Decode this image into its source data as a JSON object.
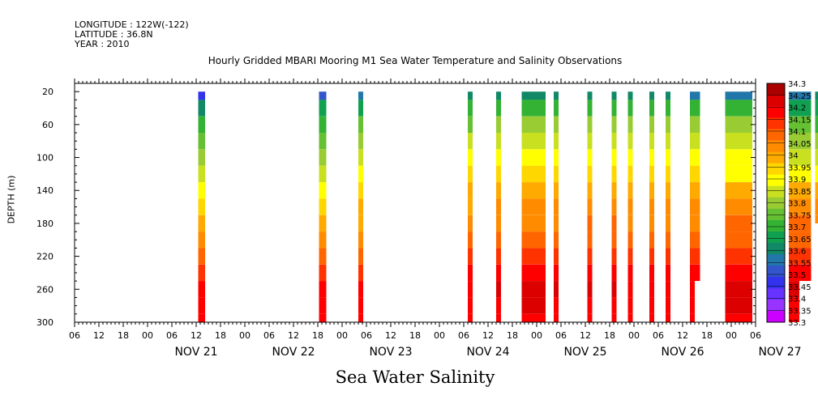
{
  "header": {
    "longitude": "LONGITUDE : 122W(-122)",
    "latitude": "LATITUDE : 36.8N",
    "year": "YEAR : 2010"
  },
  "chart_data": {
    "type": "heatmap",
    "title": "Hourly Gridded MBARI Mooring M1 Sea Water Temperature and Salinity Observations",
    "bottom_title": "Sea Water Salinity",
    "ylabel": "DEPTH (m)",
    "xlabel": "",
    "x_hour_labels": [
      "00",
      "06",
      "12",
      "18"
    ],
    "day_labels": [
      "NOV 21",
      "NOV 22",
      "NOV 23",
      "NOV 24",
      "NOV 25",
      "NOV 26",
      "NOV 27"
    ],
    "xlim_hours": [
      -18,
      24
    ],
    "x_hours_start_note": "",
    "ylim": [
      300,
      10
    ],
    "y_ticks": [
      20,
      60,
      100,
      140,
      180,
      220,
      260,
      300
    ],
    "colorbar_levels": [
      33.3,
      33.35,
      33.4,
      33.45,
      33.5,
      33.55,
      33.6,
      33.65,
      33.7,
      33.75,
      33.8,
      33.85,
      33.9,
      33.95,
      34,
      34.05,
      34.1,
      34.15,
      34.2,
      34.25,
      34.3
    ],
    "colorbar_labels": [
      "34.3",
      "34.25",
      "34.2",
      "34.15",
      "34.1",
      "34.05",
      "34",
      "33.95",
      "33.9",
      "33.85",
      "33.8",
      "33.75",
      "33.7",
      "33.65",
      "33.6",
      "33.55",
      "33.5",
      "33.45",
      "33.4",
      "33.35",
      "33.3"
    ],
    "colors": [
      "#cc00ff",
      "#9933ff",
      "#6633ff",
      "#3333ee",
      "#3355cc",
      "#2277aa",
      "#118866",
      "#11a050",
      "#33b233",
      "#66c033",
      "#99cc33",
      "#c8e020",
      "#ffff00",
      "#ffd700",
      "#ffaa00",
      "#ff8c00",
      "#ff6600",
      "#ff3300",
      "#ff0000",
      "#dd0000",
      "#aa0000"
    ],
    "profiles": [
      {
        "name": "A",
        "x0": 12.5,
        "x1": 14.2,
        "depths": [
          20,
          40,
          60,
          80,
          100,
          120,
          140,
          160,
          180,
          200,
          220,
          240,
          260,
          280,
          300
        ],
        "values": [
          33.45,
          33.6,
          33.7,
          33.75,
          33.8,
          33.85,
          33.9,
          33.95,
          34.0,
          34.05,
          34.1,
          34.15,
          34.2,
          34.2,
          34.2
        ]
      },
      {
        "name": "B",
        "x0": 42.3,
        "x1": 44.1,
        "depths": [
          20,
          40,
          60,
          80,
          100,
          120,
          140,
          160,
          180,
          200,
          220,
          240,
          260,
          280,
          300
        ],
        "values": [
          33.5,
          33.65,
          33.72,
          33.78,
          33.83,
          33.88,
          33.93,
          33.98,
          34.02,
          34.06,
          34.12,
          34.17,
          34.2,
          34.22,
          34.22
        ]
      },
      {
        "name": "C",
        "x0": 52.0,
        "x1": 53.2,
        "depths": [
          20,
          40,
          60,
          80,
          100,
          120,
          140,
          160,
          180,
          200,
          220,
          240,
          260,
          280,
          300
        ],
        "values": [
          33.55,
          33.68,
          33.75,
          33.8,
          33.85,
          33.9,
          33.95,
          34.0,
          34.03,
          34.07,
          34.12,
          34.17,
          34.2,
          34.21,
          34.2
        ]
      },
      {
        "name": "D",
        "x0": 79.0,
        "x1": 80.2,
        "depths": [
          20,
          40,
          60,
          80,
          100,
          120,
          140,
          160,
          180,
          200,
          220,
          240,
          260,
          280,
          300
        ],
        "values": [
          33.6,
          33.7,
          33.78,
          33.85,
          33.9,
          33.95,
          34.0,
          34.02,
          34.05,
          34.1,
          34.15,
          34.2,
          34.22,
          34.22,
          34.2
        ]
      },
      {
        "name": "E",
        "x0": 86.0,
        "x1": 87.2,
        "depths": [
          20,
          40,
          60,
          80,
          100,
          120,
          140,
          160,
          180,
          200,
          220,
          240,
          260,
          280,
          300
        ],
        "values": [
          33.6,
          33.72,
          33.8,
          33.87,
          33.92,
          33.97,
          34.02,
          34.05,
          34.08,
          34.12,
          34.17,
          34.22,
          34.25,
          34.24,
          34.2
        ]
      },
      {
        "name": "F",
        "x0": 92.3,
        "x1": 98.2,
        "depths": [
          20,
          40,
          60,
          80,
          100,
          120,
          140,
          160,
          180,
          200,
          220,
          240,
          260,
          280,
          300
        ],
        "values": [
          33.6,
          33.72,
          33.82,
          33.88,
          33.9,
          33.95,
          34.0,
          34.05,
          34.08,
          34.1,
          34.18,
          34.22,
          34.27,
          34.25,
          34.22
        ]
      },
      {
        "name": "G",
        "x0": 100.2,
        "x1": 101.4,
        "depths": [
          20,
          40,
          60,
          80,
          100,
          120,
          140,
          160,
          180,
          200,
          220,
          240,
          260,
          280,
          300
        ],
        "values": [
          33.6,
          33.72,
          33.82,
          33.88,
          33.93,
          33.98,
          34.02,
          34.05,
          34.08,
          34.12,
          34.17,
          34.22,
          34.25,
          34.23,
          34.2
        ]
      },
      {
        "name": "H",
        "x0": 108.5,
        "x1": 109.7,
        "depths": [
          20,
          40,
          60,
          80,
          100,
          120,
          140,
          160,
          180,
          200,
          220,
          240,
          260,
          280,
          300
        ],
        "values": [
          33.6,
          33.72,
          33.8,
          33.87,
          33.92,
          33.97,
          34.0,
          34.05,
          34.1,
          34.12,
          34.17,
          34.22,
          34.25,
          34.22,
          34.2
        ]
      },
      {
        "name": "I",
        "x0": 114.5,
        "x1": 115.7,
        "depths": [
          20,
          40,
          60,
          80,
          100,
          120,
          140,
          160,
          180,
          200,
          220,
          240,
          260,
          280,
          300
        ],
        "values": [
          33.6,
          33.72,
          33.8,
          33.87,
          33.92,
          33.97,
          34.0,
          34.05,
          34.1,
          34.12,
          34.17,
          34.22,
          34.25,
          34.22,
          34.2
        ]
      },
      {
        "name": "J",
        "x0": 118.5,
        "x1": 119.7,
        "depths": [
          20,
          40,
          60,
          80,
          100,
          120,
          140,
          160,
          180,
          200,
          220,
          240,
          260,
          280,
          300
        ],
        "values": [
          33.6,
          33.72,
          33.8,
          33.87,
          33.92,
          33.97,
          34.0,
          34.05,
          34.08,
          34.12,
          34.17,
          34.22,
          34.24,
          34.22,
          34.2
        ]
      },
      {
        "name": "K",
        "x0": 123.8,
        "x1": 125.0,
        "depths": [
          20,
          40,
          60,
          80,
          100,
          120,
          140,
          160,
          180,
          200,
          220,
          240,
          260,
          280,
          300
        ],
        "values": [
          33.6,
          33.72,
          33.8,
          33.87,
          33.92,
          33.97,
          34.0,
          34.05,
          34.08,
          34.12,
          34.17,
          34.22,
          34.24,
          34.22,
          34.2
        ]
      },
      {
        "name": "L",
        "x0": 127.8,
        "x1": 129.0,
        "depths": [
          20,
          40,
          60,
          80,
          100,
          120,
          140,
          160,
          180,
          200,
          220,
          240,
          260,
          280,
          300
        ],
        "values": [
          33.6,
          33.72,
          33.8,
          33.87,
          33.92,
          33.97,
          34.0,
          34.05,
          34.08,
          34.12,
          34.17,
          34.22,
          34.24,
          34.22,
          34.2
        ]
      },
      {
        "name": "M",
        "x0": 133.8,
        "x1": 136.3,
        "depths": [
          20,
          40,
          60,
          80,
          100,
          120,
          140,
          160,
          180,
          200,
          220,
          240,
          260,
          280,
          300
        ],
        "values": [
          33.55,
          33.7,
          33.8,
          33.87,
          33.92,
          33.97,
          34.02,
          34.05,
          34.08,
          34.12,
          34.17,
          34.22,
          34.22,
          34.2,
          34.2
        ],
        "cut": [
          [
            135.0,
            136.3,
            250
          ]
        ]
      },
      {
        "name": "N",
        "x0": 142.5,
        "x1": 149.2,
        "depths": [
          20,
          40,
          60,
          80,
          100,
          120,
          140,
          160,
          180,
          200,
          220,
          240,
          260,
          280,
          300
        ],
        "values": [
          33.55,
          33.7,
          33.8,
          33.87,
          33.9,
          33.93,
          34.0,
          34.05,
          34.1,
          34.12,
          34.18,
          34.22,
          34.27,
          34.26,
          34.22
        ]
      },
      {
        "name": "O",
        "x0": 158.2,
        "x1": 163.7,
        "depths": [
          20,
          40,
          60,
          80,
          100,
          120,
          140,
          160,
          180,
          200,
          220,
          240,
          260,
          280,
          300
        ],
        "values": [
          33.55,
          33.65,
          33.75,
          33.82,
          33.88,
          33.93,
          34.0,
          34.05,
          34.1,
          34.12,
          34.17,
          34.22,
          34.26,
          34.24,
          34.2
        ],
        "cut": [
          [
            160.8,
            163.7,
            250
          ]
        ]
      },
      {
        "name": "P",
        "x0": 164.7,
        "x1": 165.9,
        "depths": [
          20,
          40,
          60,
          80,
          100,
          120,
          140,
          160,
          180
        ],
        "values": [
          33.6,
          33.65,
          33.72,
          33.8,
          33.87,
          33.93,
          34.0,
          34.05,
          34.08
        ]
      },
      {
        "name": "Q",
        "x0": 168.7,
        "x1": 171.3,
        "depths": [
          20,
          40,
          60,
          80,
          100,
          120,
          140,
          160,
          180,
          200,
          220,
          240,
          260
        ],
        "values": [
          33.6,
          33.65,
          33.72,
          33.8,
          33.87,
          33.93,
          34.0,
          34.05,
          34.08,
          34.12,
          34.17,
          34.2,
          34.2
        ],
        "cut": [
          [
            168.7,
            171.3,
            250
          ]
        ]
      },
      {
        "name": "R",
        "x0": 173.3,
        "x1": 173.6,
        "depths": [
          20,
          40,
          60,
          80,
          100,
          120,
          140,
          160,
          180,
          200,
          220,
          240
        ],
        "values": [
          33.65,
          33.7,
          33.75,
          33.82,
          33.88,
          33.93,
          34.0,
          34.05,
          34.08,
          34.12,
          34.17,
          34.2
        ]
      }
    ]
  }
}
